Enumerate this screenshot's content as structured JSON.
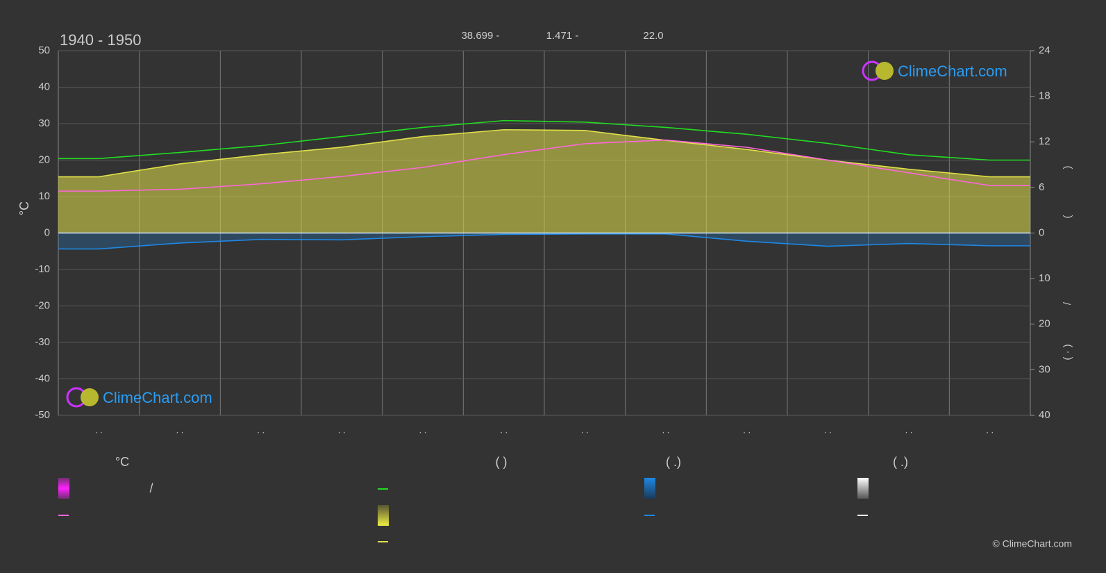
{
  "chart_data": {
    "type": "line",
    "title": "1940 - 1950",
    "header_values": [
      "38.699 -",
      "1.471 -",
      "22.0"
    ],
    "y_label": "°C",
    "y2_label_parts": [
      ")",
      "(",
      "/",
      "(  ·  )"
    ],
    "categories": [
      ". .",
      ". .",
      ". .",
      ". .",
      ". .",
      ". .",
      ". .",
      ". .",
      ". .",
      ". .",
      ". .",
      ". ."
    ],
    "ylim": [
      -50,
      50
    ],
    "yticks": [
      -50,
      -40,
      -30,
      -20,
      -10,
      0,
      10,
      20,
      30,
      40,
      50
    ],
    "y2lim": [
      0,
      24
    ],
    "y2ticks": [
      0,
      6,
      12,
      18,
      24
    ],
    "y3lim": [
      0,
      40
    ],
    "y3ticks": [
      0,
      10,
      20,
      30,
      40
    ],
    "grid": true,
    "series": [
      {
        "color": "#e0e04a",
        "axis": "y2",
        "fill": true,
        "values": [
          7.4,
          9.1,
          10.3,
          11.3,
          12.7,
          13.6,
          13.5,
          12.2,
          11.0,
          9.6,
          8.4,
          7.4
        ]
      },
      {
        "color": "#22dd22",
        "axis": "y2",
        "values": [
          9.8,
          10.6,
          11.5,
          12.7,
          13.9,
          14.8,
          14.6,
          13.9,
          13.0,
          11.8,
          10.3,
          9.6
        ]
      },
      {
        "color": "#ff66dd",
        "axis": "y",
        "values": [
          11.5,
          12,
          13.5,
          15.5,
          18,
          21.5,
          24.5,
          25.5,
          23.5,
          20,
          16.5,
          13
        ]
      },
      {
        "color": "#1e88e5",
        "axis": "y3",
        "fill": true,
        "values": [
          3.5,
          2.2,
          1.4,
          1.5,
          0.8,
          0.3,
          0.2,
          0.2,
          1.8,
          2.9,
          2.3,
          2.8
        ]
      }
    ],
    "legend_texts": [
      "°C",
      "/",
      "(          )",
      "(   .)",
      "(   .)"
    ],
    "watermark": "ClimeChart.com",
    "copyright": "© ClimeChart.com"
  }
}
